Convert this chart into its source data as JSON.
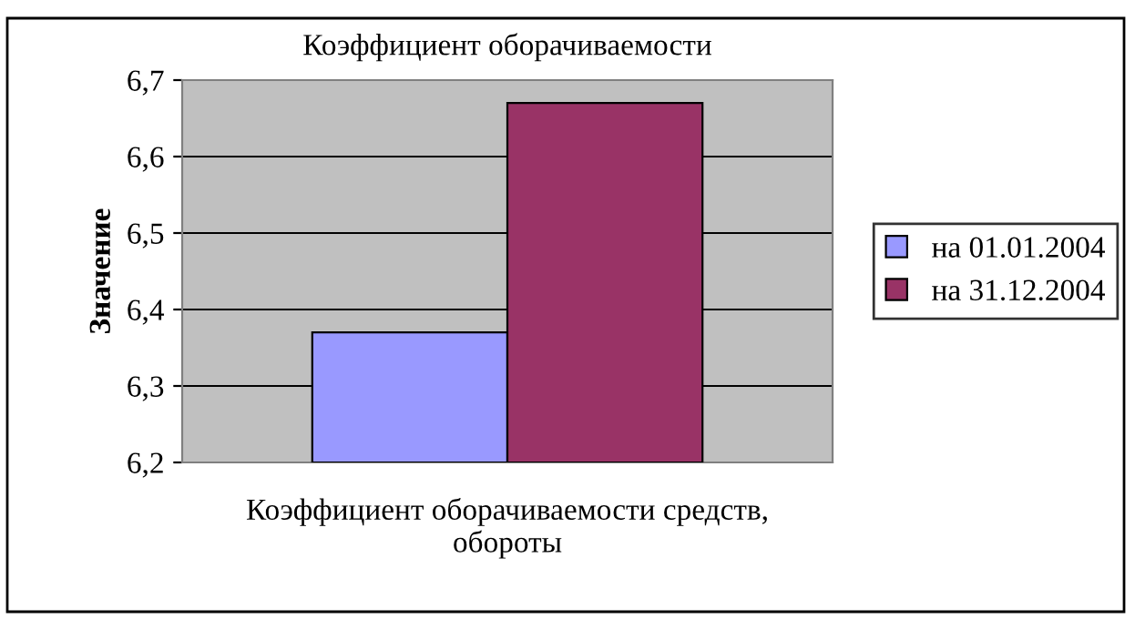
{
  "chart_data": {
    "type": "bar",
    "title": "Коэффициент оборачиваемости",
    "ylabel": "Значение",
    "categories": [
      "Коэффициент оборачиваемости средств,\nобороты"
    ],
    "series": [
      {
        "name": "на 01.01.2004",
        "color": "#9999ff",
        "values": [
          6.37
        ]
      },
      {
        "name": "на 31.12.2004",
        "color": "#993366",
        "values": [
          6.67
        ]
      }
    ],
    "ylim": [
      6.2,
      6.7
    ],
    "yticks": [
      {
        "value": 6.2,
        "label": "6,2"
      },
      {
        "value": 6.3,
        "label": "6,3"
      },
      {
        "value": 6.4,
        "label": "6,4"
      },
      {
        "value": 6.5,
        "label": "6,5"
      },
      {
        "value": 6.6,
        "label": "6,6"
      },
      {
        "value": 6.7,
        "label": "6,7"
      }
    ],
    "grid": "y",
    "legend": "right"
  }
}
